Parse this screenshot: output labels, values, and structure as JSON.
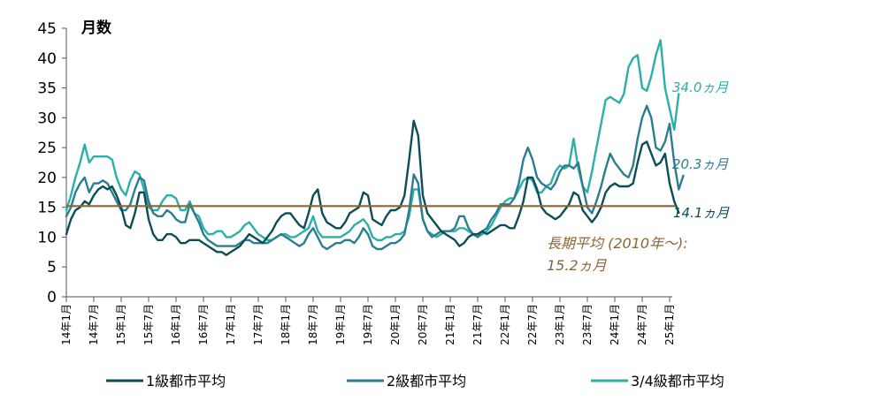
{
  "chart_data": {
    "type": "line",
    "title": "",
    "ylabel": "月数",
    "xlabel": "",
    "ylim": [
      0,
      45
    ],
    "yticks": [
      0,
      5,
      10,
      15,
      20,
      25,
      30,
      35,
      40,
      45
    ],
    "x_tick_labels": [
      "14年1月",
      "14年7月",
      "15年1月",
      "15年7月",
      "16年1月",
      "16年7月",
      "17年1月",
      "17年7月",
      "18年1月",
      "18年7月",
      "19年1月",
      "19年7月",
      "20年1月",
      "20年7月",
      "21年1月",
      "21年7月",
      "22年1月",
      "22年7月",
      "23年1月",
      "23年7月",
      "24年1月",
      "24年7月",
      "25年1月"
    ],
    "x_tick_step_months": 6,
    "n_points": 133,
    "grid": false,
    "legend_position": "bottom",
    "reference_line": {
      "value": 15.2,
      "label_line1": "長期平均 (2010年～):",
      "label_line2": "15.2ヵ月",
      "color": "#8B6534"
    },
    "series": [
      {
        "name": "1級都市平均",
        "color": "#0B4E57",
        "end_label": "14.1ヵ月",
        "values": [
          10.5,
          13.0,
          14.5,
          15.0,
          16.0,
          15.5,
          17.0,
          18.0,
          18.5,
          18.0,
          18.5,
          17.0,
          15.0,
          12.0,
          11.5,
          14.0,
          17.5,
          17.5,
          13.0,
          10.5,
          9.5,
          9.5,
          10.5,
          10.5,
          10.0,
          9.0,
          9.0,
          9.5,
          9.5,
          9.5,
          9.0,
          8.5,
          8.0,
          7.5,
          7.5,
          7.0,
          7.5,
          8.0,
          8.5,
          9.5,
          10.5,
          10.0,
          9.5,
          9.0,
          10.0,
          11.0,
          12.5,
          13.5,
          14.0,
          14.0,
          13.0,
          12.0,
          11.5,
          14.0,
          17.0,
          18.0,
          14.0,
          12.5,
          12.0,
          11.5,
          11.5,
          12.5,
          14.0,
          14.5,
          15.0,
          17.5,
          17.0,
          13.0,
          12.5,
          12.0,
          13.5,
          14.5,
          14.5,
          15.0,
          17.0,
          23.0,
          29.5,
          27.0,
          17.0,
          14.0,
          13.0,
          12.0,
          11.0,
          10.5,
          10.0,
          9.5,
          8.5,
          9.0,
          10.0,
          10.5,
          10.5,
          11.0,
          10.5,
          11.0,
          11.5,
          12.0,
          12.0,
          11.5,
          11.5,
          13.5,
          16.0,
          20.0,
          20.0,
          18.0,
          15.0,
          14.0,
          13.5,
          13.0,
          13.5,
          14.5,
          15.5,
          17.5,
          17.0,
          14.5,
          13.5,
          12.5,
          13.5,
          15.0,
          17.5,
          18.5,
          19.0,
          18.5,
          18.5,
          18.5,
          19.0,
          22.5,
          25.5,
          26.0,
          24.0,
          22.0,
          22.5,
          24.0,
          19.0,
          16.0,
          14.1
        ]
      },
      {
        "name": "2級都市平均",
        "color": "#2C7D8F",
        "end_label": "20.3ヵ月",
        "values": [
          13.5,
          15.0,
          17.5,
          19.0,
          20.0,
          17.5,
          19.0,
          19.0,
          19.5,
          19.0,
          17.5,
          16.0,
          14.5,
          14.5,
          15.5,
          18.0,
          20.0,
          19.5,
          16.0,
          14.0,
          13.5,
          13.5,
          14.5,
          14.0,
          13.0,
          12.5,
          12.5,
          15.5,
          14.0,
          12.5,
          10.5,
          9.5,
          9.0,
          8.5,
          8.5,
          8.5,
          8.5,
          8.5,
          9.0,
          9.5,
          9.5,
          9.0,
          9.0,
          9.0,
          9.0,
          9.5,
          10.0,
          10.5,
          10.0,
          9.5,
          9.0,
          8.5,
          9.0,
          10.5,
          11.5,
          10.0,
          8.5,
          8.0,
          8.5,
          9.0,
          9.0,
          9.5,
          9.5,
          9.0,
          10.0,
          11.5,
          10.5,
          8.5,
          8.0,
          8.0,
          8.5,
          9.0,
          9.0,
          9.5,
          10.5,
          14.5,
          20.5,
          19.0,
          13.0,
          11.0,
          10.0,
          10.5,
          11.0,
          11.0,
          11.0,
          11.5,
          13.5,
          13.5,
          11.5,
          10.5,
          10.0,
          11.0,
          11.5,
          13.0,
          14.0,
          15.5,
          15.5,
          15.5,
          16.5,
          19.0,
          23.0,
          25.0,
          23.0,
          20.0,
          19.0,
          18.5,
          18.0,
          19.0,
          21.0,
          22.0,
          22.0,
          21.5,
          22.5,
          18.5,
          15.0,
          14.0,
          16.0,
          18.5,
          21.5,
          24.0,
          22.5,
          21.5,
          20.5,
          20.0,
          22.0,
          26.5,
          30.0,
          32.0,
          30.0,
          25.0,
          24.5,
          26.0,
          29.0,
          22.5,
          18.0,
          20.3
        ]
      },
      {
        "name": "3/4級都市平均",
        "color": "#2AB0A8",
        "end_label": "34.0ヵ月",
        "values": [
          14.5,
          17.0,
          20.0,
          22.5,
          25.5,
          22.5,
          23.5,
          23.5,
          23.5,
          23.5,
          23.0,
          20.0,
          18.0,
          17.0,
          19.5,
          21.0,
          20.5,
          18.0,
          15.0,
          14.5,
          14.5,
          16.0,
          17.0,
          17.0,
          16.5,
          14.5,
          14.5,
          16.0,
          14.0,
          13.5,
          11.5,
          10.5,
          10.5,
          11.0,
          11.0,
          10.0,
          10.0,
          10.5,
          11.0,
          12.0,
          12.5,
          11.5,
          10.5,
          10.0,
          9.5,
          9.5,
          10.0,
          10.5,
          10.5,
          10.0,
          10.0,
          10.5,
          11.0,
          11.5,
          13.5,
          11.0,
          10.0,
          10.0,
          10.0,
          10.0,
          10.0,
          10.5,
          11.0,
          12.0,
          12.5,
          13.0,
          12.0,
          10.0,
          9.5,
          9.5,
          10.0,
          10.0,
          10.5,
          10.5,
          11.0,
          13.5,
          18.0,
          18.0,
          13.0,
          11.0,
          10.5,
          10.0,
          10.5,
          11.0,
          11.0,
          11.0,
          11.5,
          11.5,
          11.0,
          10.5,
          10.0,
          10.5,
          11.0,
          12.0,
          13.5,
          15.0,
          16.0,
          16.5,
          16.5,
          18.0,
          19.5,
          20.0,
          19.5,
          17.5,
          17.5,
          18.5,
          19.0,
          21.0,
          22.0,
          21.5,
          22.0,
          26.5,
          21.5,
          18.5,
          17.5,
          21.0,
          25.0,
          29.0,
          33.0,
          33.5,
          33.0,
          32.5,
          34.0,
          38.5,
          40.0,
          40.5,
          35.0,
          34.5,
          37.0,
          40.5,
          43.0,
          35.0,
          31.5,
          28.0,
          34.0
        ]
      }
    ]
  }
}
